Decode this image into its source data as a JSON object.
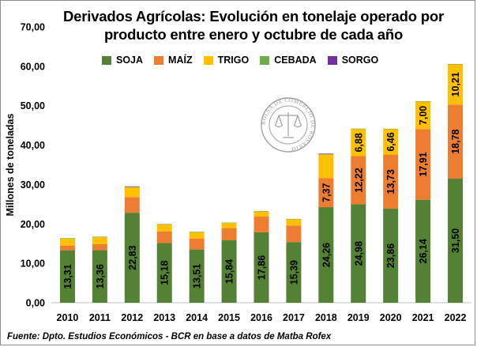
{
  "chart_data": {
    "type": "bar",
    "stacked": true,
    "title": "Derivados Agrícolas: Evolución en tonelaje operado por producto entre enero y octubre de cada año",
    "title_line1": "Derivados Agrícolas: Evolución en tonelaje operado por",
    "title_line2": "producto entre enero y octubre de cada año",
    "ylabel": "Millones de toneladas",
    "xlabel": "",
    "ylim": [
      0,
      70
    ],
    "yticks": [
      "0,00",
      "10,00",
      "20,00",
      "30,00",
      "40,00",
      "50,00",
      "60,00",
      "70,00"
    ],
    "ytick_values": [
      0,
      10,
      20,
      30,
      40,
      50,
      60,
      70
    ],
    "grid": false,
    "legend_position": "top",
    "categories": [
      "2010",
      "2011",
      "2012",
      "2013",
      "2014",
      "2015",
      "2016",
      "2017",
      "2018",
      "2019",
      "2020",
      "2021",
      "2022"
    ],
    "series": [
      {
        "name": "SOJA",
        "color": "#548235",
        "values": [
          13.31,
          13.36,
          22.83,
          15.18,
          13.51,
          15.84,
          17.86,
          15.39,
          24.26,
          24.98,
          23.86,
          26.14,
          31.5
        ],
        "labels": [
          "13,31",
          "13,36",
          "22,83",
          "15,18",
          "13,51",
          "15,84",
          "17,86",
          "15,39",
          "24,26",
          "24,98",
          "23,86",
          "26,14",
          "31,50"
        ]
      },
      {
        "name": "MAÍZ",
        "color": "#ED7D31",
        "values": [
          1.2,
          1.5,
          4.0,
          2.9,
          2.8,
          3.1,
          4.0,
          4.2,
          7.37,
          12.22,
          13.73,
          17.91,
          18.78
        ],
        "labels": [
          null,
          null,
          null,
          null,
          null,
          null,
          null,
          null,
          "7,37",
          "12,22",
          "13,73",
          "17,91",
          "18,78"
        ]
      },
      {
        "name": "TRIGO",
        "color": "#FFC000",
        "values": [
          1.8,
          1.8,
          2.5,
          1.8,
          1.6,
          1.3,
          1.3,
          1.6,
          6.0,
          6.88,
          6.46,
          7.0,
          10.21
        ],
        "labels": [
          null,
          null,
          null,
          null,
          null,
          null,
          null,
          null,
          null,
          "6,88",
          "6,46",
          "7,00",
          "10,21"
        ]
      },
      {
        "name": "CEBADA",
        "color": "#70AD47",
        "values": [
          0.1,
          0.1,
          0.1,
          0.1,
          0.1,
          0.1,
          0.1,
          0.1,
          0.1,
          0.1,
          0.1,
          0.1,
          0.1
        ],
        "labels": [
          null,
          null,
          null,
          null,
          null,
          null,
          null,
          null,
          null,
          null,
          null,
          null,
          null
        ]
      },
      {
        "name": "SORGO",
        "color": "#7030A0",
        "values": [
          0,
          0,
          0.1,
          0,
          0,
          0,
          0,
          0,
          0.1,
          0,
          0,
          0,
          0
        ],
        "labels": [
          null,
          null,
          null,
          null,
          null,
          null,
          null,
          null,
          null,
          null,
          null,
          null,
          null
        ]
      }
    ]
  },
  "source": "Fuente: Dpto. Estudios Económicos - BCR en base a datos de Matba Rofex",
  "watermark_text": "BOLSA DE COMERCIO DE ROSARIO"
}
